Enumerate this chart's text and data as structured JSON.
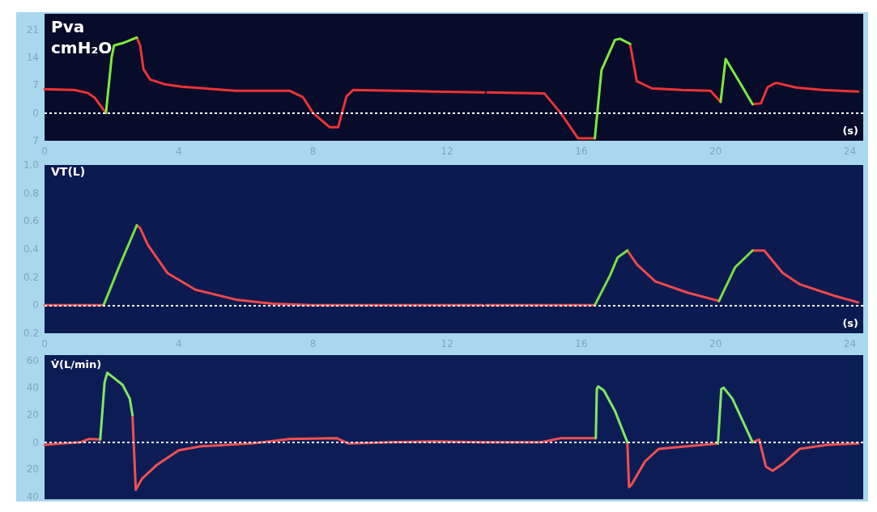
{
  "chart_data": [
    {
      "type": "line",
      "ylabel": "Pva\ncmH₂O",
      "xlabel": "(s)",
      "marker": "none",
      "xlim": [
        0,
        24.4
      ],
      "xticks": [
        0,
        4,
        8,
        12,
        16,
        20,
        24
      ],
      "ylim": [
        -7,
        25
      ],
      "yticks": [
        {
          "value": -7,
          "label": "7"
        },
        0,
        7,
        14,
        21
      ],
      "ref_lines": [
        {
          "axis": "y",
          "value": 0,
          "line_style": "dotted",
          "color": "#ffffff"
        }
      ],
      "series": [
        {
          "color": "#ee3333",
          "x": [
            0,
            0.9,
            1.3,
            1.5,
            1.7,
            1.83,
            2.3,
            2.75,
            2.85,
            2.95,
            3.15,
            3.6,
            4.1,
            5.7,
            7.3,
            7.7,
            8.0,
            8.5,
            8.75,
            9.0,
            9.2,
            10.5,
            11.6,
            13.1,
            13.15,
            13.2,
            14.9,
            15.4,
            15.9,
            16.4,
            17.0,
            17.45,
            17.55,
            17.65,
            18.1,
            19.0,
            19.85,
            20.15,
            20.6,
            21.1,
            21.35,
            21.55,
            21.8,
            22.4,
            23.2,
            24.25
          ],
          "values": [
            6,
            5.8,
            5,
            3.8,
            1.5,
            0,
            null,
            19,
            17,
            11,
            8.4,
            7.2,
            6.6,
            5.6,
            5.6,
            4,
            0,
            -3.6,
            -3.6,
            4.2,
            5.8,
            5.6,
            5.4,
            5.2,
            null,
            5.2,
            4.9,
            -0.2,
            -6.4,
            -6.4,
            null,
            17.4,
            12.8,
            8,
            6.2,
            5.8,
            5.6,
            2.8,
            null,
            2.2,
            2.4,
            6.5,
            7.6,
            6.4,
            5.8,
            5.4
          ]
        },
        {
          "color": "#7cec3c",
          "x": [
            1.83,
            2.0,
            2.07,
            2.33,
            2.75,
            9.0,
            16.4,
            16.6,
            17.0,
            17.15,
            17.45,
            19.0,
            20.15,
            20.3,
            20.7,
            21.1
          ],
          "values": [
            0,
            14,
            17,
            17.6,
            19,
            null,
            -6.4,
            10.8,
            18.4,
            18.7,
            17.4,
            null,
            2.8,
            13.6,
            8,
            2.2
          ]
        }
      ]
    },
    {
      "type": "line",
      "ylabel": "VT(L)",
      "xlabel": "(s)",
      "marker": "none",
      "xlim": [
        0,
        24.4
      ],
      "xticks": [
        0,
        4,
        8,
        12,
        16,
        20,
        24
      ],
      "ylim": [
        -0.2,
        1.0
      ],
      "yticks": [
        {
          "value": -0.2,
          "label": "0.2"
        },
        0,
        0.2,
        0.4,
        0.6,
        0.8,
        {
          "value": 1,
          "label": "1.0"
        }
      ],
      "ref_lines": [
        {
          "axis": "y",
          "value": 0,
          "line_style": "dotted",
          "color": "#ffffff"
        }
      ],
      "series": [
        {
          "color": "#f04848",
          "x": [
            0,
            1.76,
            2.3,
            2.75,
            2.85,
            3.08,
            3.66,
            4.5,
            5.7,
            6.8,
            8.0,
            13.05,
            13.1,
            13.15,
            16.4,
            17.0,
            17.37,
            17.66,
            18.2,
            19.16,
            20.1,
            20.6,
            21.1,
            21.45,
            22.0,
            22.5,
            23.5,
            24.25
          ],
          "values": [
            0,
            0,
            null,
            0.57,
            0.55,
            0.43,
            0.23,
            0.11,
            0.04,
            0.01,
            0,
            0,
            null,
            0,
            0,
            null,
            0.39,
            0.29,
            0.17,
            0.09,
            0.03,
            null,
            0.39,
            0.39,
            0.23,
            0.15,
            0.07,
            0.02
          ]
        },
        {
          "color": "#78e040",
          "x": [
            1.76,
            2.25,
            2.75,
            9.0,
            16.4,
            16.85,
            17.08,
            17.37,
            19.0,
            20.1,
            20.58,
            21.1
          ],
          "values": [
            0,
            0.29,
            0.57,
            null,
            0,
            0.21,
            0.34,
            0.39,
            null,
            0.03,
            0.27,
            0.39
          ]
        }
      ]
    },
    {
      "type": "line",
      "ylabel": "V̇(L/min)",
      "marker": "none",
      "tick_labels": "y",
      "xlim": [
        0,
        24.4
      ],
      "ylim": [
        -42,
        64
      ],
      "yticks": [
        {
          "value": -40,
          "label": "40"
        },
        {
          "value": -20,
          "label": "20"
        },
        0,
        20,
        40,
        60
      ],
      "ref_lines": [
        {
          "axis": "y",
          "value": 0,
          "line_style": "dotted",
          "color": "#ffffff"
        }
      ],
      "series": [
        {
          "color": "#f05050",
          "x": [
            0,
            0.5,
            1.08,
            1.33,
            1.66,
            2.1,
            2.62,
            2.72,
            2.9,
            3.33,
            4.0,
            4.66,
            6.15,
            7.3,
            8.7,
            9.06,
            10.3,
            11.6,
            13.05,
            14.8,
            15.4,
            16.43,
            16.9,
            17.37,
            17.42,
            17.5,
            17.9,
            18.3,
            19.15,
            20.07,
            20.6,
            21.1,
            21.3,
            21.5,
            21.7,
            22.0,
            22.5,
            23.3,
            24.25
          ],
          "values": [
            -2,
            -1,
            0,
            2.4,
            2,
            null,
            20,
            -35,
            -27,
            -17,
            -6,
            -3,
            -1,
            2.4,
            3,
            -1,
            0,
            0.5,
            0,
            0,
            3,
            3,
            null,
            0,
            -33,
            -31,
            -14,
            -5,
            -3,
            -1,
            null,
            0,
            2,
            -18,
            -21,
            -16,
            -5,
            -2,
            -1
          ]
        },
        {
          "color": "#80e860",
          "x": [
            1.66,
            1.79,
            1.87,
            2.08,
            2.33,
            2.54,
            2.62,
            9.0,
            16.43,
            16.46,
            16.5,
            16.67,
            17.0,
            17.37,
            19.0,
            20.07,
            20.17,
            20.24,
            20.5,
            21.1
          ],
          "values": [
            2,
            44,
            51,
            47,
            42,
            32,
            20,
            null,
            3,
            39,
            41,
            38,
            23,
            0,
            null,
            -1,
            39,
            40,
            32,
            0
          ]
        }
      ]
    }
  ]
}
